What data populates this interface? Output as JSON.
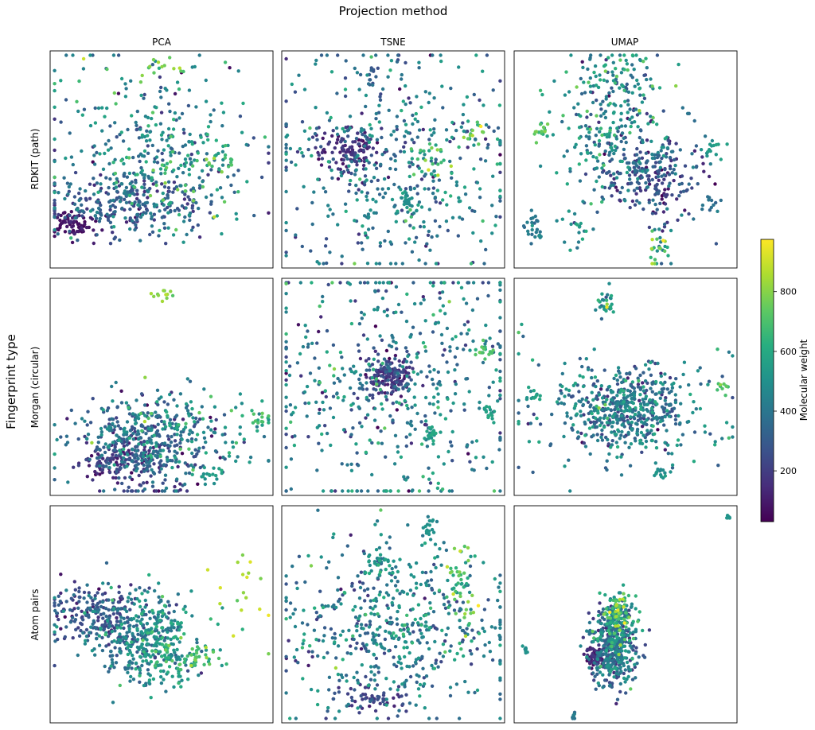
{
  "figure": {
    "title": "Projection method",
    "row_axis_label": "Fingerprint type"
  },
  "colorbar": {
    "label": "Molecular weight",
    "colormap": "viridis",
    "range": [
      30,
      975
    ],
    "ticks": [
      "200",
      "400",
      "600",
      "800"
    ]
  },
  "chart_data": {
    "type": "scatter",
    "layout": "3x3 grid of scatter panels, shared colorbar at right",
    "columns": [
      "PCA",
      "TSNE",
      "UMAP"
    ],
    "rows": [
      "RDKIT (path)",
      "Morgan (circular)",
      "Atom pairs"
    ],
    "axes_ticks_shown": false,
    "grid": false,
    "color_encoding": "Molecular weight",
    "points_per_panel_approx": 800,
    "panels": [
      {
        "row": "RDKIT (path)",
        "column": "PCA",
        "xlim": [
          0,
          1
        ],
        "ylim": [
          0,
          1
        ],
        "clusters": [
          {
            "center": [
              0.36,
              0.3
            ],
            "spread": [
              0.2,
              0.08
            ],
            "n": 300,
            "mw_mean": 300,
            "mw_sd": 90
          },
          {
            "center": [
              0.1,
              0.2
            ],
            "spread": [
              0.05,
              0.03
            ],
            "n": 70,
            "mw_mean": 80,
            "mw_sd": 30
          },
          {
            "center": [
              0.45,
              0.6
            ],
            "spread": [
              0.25,
              0.22
            ],
            "n": 240,
            "mw_mean": 420,
            "mw_sd": 140
          },
          {
            "center": [
              0.55,
              0.45
            ],
            "spread": [
              0.2,
              0.12
            ],
            "n": 120,
            "mw_mean": 560,
            "mw_sd": 140
          },
          {
            "center": [
              0.52,
              0.92
            ],
            "spread": [
              0.05,
              0.03
            ],
            "n": 12,
            "mw_mean": 800,
            "mw_sd": 40
          },
          {
            "center": [
              0.75,
              0.47
            ],
            "spread": [
              0.05,
              0.03
            ],
            "n": 10,
            "mw_mean": 760,
            "mw_sd": 60
          }
        ]
      },
      {
        "row": "RDKIT (path)",
        "column": "TSNE",
        "xlim": [
          0,
          1
        ],
        "ylim": [
          0,
          1
        ],
        "clusters": [
          {
            "center": [
              0.31,
              0.55
            ],
            "spread": [
              0.07,
              0.06
            ],
            "n": 120,
            "mw_mean": 160,
            "mw_sd": 50
          },
          {
            "center": [
              0.5,
              0.5
            ],
            "spread": [
              0.28,
              0.25
            ],
            "n": 480,
            "mw_mean": 400,
            "mw_sd": 130
          },
          {
            "center": [
              0.57,
              0.3
            ],
            "spread": [
              0.03,
              0.03
            ],
            "n": 25,
            "mw_mean": 480,
            "mw_sd": 40
          },
          {
            "center": [
              0.85,
              0.62
            ],
            "spread": [
              0.05,
              0.04
            ],
            "n": 20,
            "mw_mean": 650,
            "mw_sd": 120
          },
          {
            "center": [
              0.4,
              0.87
            ],
            "spread": [
              0.02,
              0.04
            ],
            "n": 12,
            "mw_mean": 300,
            "mw_sd": 40
          },
          {
            "center": [
              0.7,
              0.5
            ],
            "spread": [
              0.04,
              0.04
            ],
            "n": 20,
            "mw_mean": 700,
            "mw_sd": 140
          }
        ]
      },
      {
        "row": "RDKIT (path)",
        "column": "UMAP",
        "xlim": [
          0,
          1
        ],
        "ylim": [
          0,
          1
        ],
        "clusters": [
          {
            "center": [
              0.62,
              0.42
            ],
            "spread": [
              0.12,
              0.1
            ],
            "n": 240,
            "mw_mean": 260,
            "mw_sd": 110
          },
          {
            "center": [
              0.45,
              0.6
            ],
            "spread": [
              0.15,
              0.15
            ],
            "n": 200,
            "mw_mean": 450,
            "mw_sd": 140
          },
          {
            "center": [
              0.46,
              0.85
            ],
            "spread": [
              0.1,
              0.07
            ],
            "n": 100,
            "mw_mean": 480,
            "mw_sd": 160
          },
          {
            "center": [
              0.08,
              0.18
            ],
            "spread": [
              0.02,
              0.04
            ],
            "n": 25,
            "mw_mean": 420,
            "mw_sd": 40
          },
          {
            "center": [
              0.12,
              0.63
            ],
            "spread": [
              0.02,
              0.02
            ],
            "n": 15,
            "mw_mean": 700,
            "mw_sd": 50
          },
          {
            "center": [
              0.65,
              0.1
            ],
            "spread": [
              0.03,
              0.06
            ],
            "n": 30,
            "mw_mean": 600,
            "mw_sd": 180
          },
          {
            "center": [
              0.9,
              0.55
            ],
            "spread": [
              0.03,
              0.02
            ],
            "n": 15,
            "mw_mean": 520,
            "mw_sd": 40
          },
          {
            "center": [
              0.88,
              0.3
            ],
            "spread": [
              0.02,
              0.02
            ],
            "n": 12,
            "mw_mean": 380,
            "mw_sd": 30
          },
          {
            "center": [
              0.27,
              0.2
            ],
            "spread": [
              0.05,
              0.04
            ],
            "n": 20,
            "mw_mean": 480,
            "mw_sd": 80
          }
        ]
      },
      {
        "row": "Morgan (circular)",
        "column": "PCA",
        "xlim": [
          0,
          1
        ],
        "ylim": [
          0,
          1
        ],
        "clusters": [
          {
            "center": [
              0.42,
              0.22
            ],
            "spread": [
              0.14,
              0.1
            ],
            "n": 380,
            "mw_mean": 300,
            "mw_sd": 110
          },
          {
            "center": [
              0.3,
              0.15
            ],
            "spread": [
              0.08,
              0.04
            ],
            "n": 80,
            "mw_mean": 150,
            "mw_sd": 50
          },
          {
            "center": [
              0.55,
              0.3
            ],
            "spread": [
              0.2,
              0.1
            ],
            "n": 200,
            "mw_mean": 450,
            "mw_sd": 140
          },
          {
            "center": [
              0.5,
              0.92
            ],
            "spread": [
              0.03,
              0.02
            ],
            "n": 12,
            "mw_mean": 800,
            "mw_sd": 40
          },
          {
            "center": [
              0.95,
              0.35
            ],
            "spread": [
              0.02,
              0.02
            ],
            "n": 12,
            "mw_mean": 680,
            "mw_sd": 50
          },
          {
            "center": [
              0.72,
              0.1
            ],
            "spread": [
              0.03,
              0.02
            ],
            "n": 15,
            "mw_mean": 520,
            "mw_sd": 60
          }
        ]
      },
      {
        "row": "Morgan (circular)",
        "column": "TSNE",
        "xlim": [
          0,
          1
        ],
        "ylim": [
          0,
          1
        ],
        "clusters": [
          {
            "center": [
              0.48,
              0.55
            ],
            "spread": [
              0.05,
              0.05
            ],
            "n": 150,
            "mw_mean": 200,
            "mw_sd": 70
          },
          {
            "center": [
              0.5,
              0.52
            ],
            "spread": [
              0.3,
              0.3
            ],
            "n": 520,
            "mw_mean": 420,
            "mw_sd": 140
          },
          {
            "center": [
              0.67,
              0.28
            ],
            "spread": [
              0.015,
              0.015
            ],
            "n": 20,
            "mw_mean": 560,
            "mw_sd": 30
          },
          {
            "center": [
              0.9,
              0.67
            ],
            "spread": [
              0.02,
              0.015
            ],
            "n": 15,
            "mw_mean": 700,
            "mw_sd": 40
          },
          {
            "center": [
              0.94,
              0.38
            ],
            "spread": [
              0.015,
              0.02
            ],
            "n": 15,
            "mw_mean": 560,
            "mw_sd": 30
          }
        ]
      },
      {
        "row": "Morgan (circular)",
        "column": "UMAP",
        "xlim": [
          0,
          1
        ],
        "ylim": [
          0,
          1
        ],
        "clusters": [
          {
            "center": [
              0.5,
              0.4
            ],
            "spread": [
              0.12,
              0.09
            ],
            "n": 420,
            "mw_mean": 380,
            "mw_sd": 130
          },
          {
            "center": [
              0.5,
              0.4
            ],
            "spread": [
              0.28,
              0.15
            ],
            "n": 180,
            "mw_mean": 420,
            "mw_sd": 140
          },
          {
            "center": [
              0.41,
              0.88
            ],
            "spread": [
              0.02,
              0.03
            ],
            "n": 30,
            "mw_mean": 500,
            "mw_sd": 120
          },
          {
            "center": [
              0.08,
              0.45
            ],
            "spread": [
              0.02,
              0.015
            ],
            "n": 12,
            "mw_mean": 560,
            "mw_sd": 40
          },
          {
            "center": [
              0.94,
              0.5
            ],
            "spread": [
              0.015,
              0.015
            ],
            "n": 10,
            "mw_mean": 700,
            "mw_sd": 40
          },
          {
            "center": [
              0.66,
              0.1
            ],
            "spread": [
              0.02,
              0.02
            ],
            "n": 15,
            "mw_mean": 500,
            "mw_sd": 30
          }
        ]
      },
      {
        "row": "Atom pairs",
        "column": "PCA",
        "xlim": [
          0,
          1
        ],
        "ylim": [
          0,
          1
        ],
        "clusters": [
          {
            "center": [
              0.2,
              0.5
            ],
            "spread": [
              0.1,
              0.07
            ],
            "n": 200,
            "mw_mean": 250,
            "mw_sd": 80
          },
          {
            "center": [
              0.4,
              0.42
            ],
            "spread": [
              0.12,
              0.1
            ],
            "n": 320,
            "mw_mean": 430,
            "mw_sd": 110
          },
          {
            "center": [
              0.5,
              0.3
            ],
            "spread": [
              0.08,
              0.08
            ],
            "n": 120,
            "mw_mean": 560,
            "mw_sd": 100
          },
          {
            "center": [
              0.68,
              0.3
            ],
            "spread": [
              0.06,
              0.03
            ],
            "n": 40,
            "mw_mean": 680,
            "mw_sd": 80
          },
          {
            "center": [
              0.85,
              0.6
            ],
            "spread": [
              0.08,
              0.12
            ],
            "n": 20,
            "mw_mean": 840,
            "mw_sd": 80
          }
        ]
      },
      {
        "row": "Atom pairs",
        "column": "TSNE",
        "xlim": [
          0,
          1
        ],
        "ylim": [
          0,
          1
        ],
        "clusters": [
          {
            "center": [
              0.5,
              0.45
            ],
            "spread": [
              0.25,
              0.2
            ],
            "n": 560,
            "mw_mean": 420,
            "mw_sd": 130
          },
          {
            "center": [
              0.4,
              0.12
            ],
            "spread": [
              0.08,
              0.03
            ],
            "n": 60,
            "mw_mean": 200,
            "mw_sd": 60
          },
          {
            "center": [
              0.8,
              0.6
            ],
            "spread": [
              0.05,
              0.1
            ],
            "n": 40,
            "mw_mean": 720,
            "mw_sd": 120
          },
          {
            "center": [
              0.66,
              0.9
            ],
            "spread": [
              0.015,
              0.03
            ],
            "n": 20,
            "mw_mean": 500,
            "mw_sd": 30
          },
          {
            "center": [
              0.45,
              0.73
            ],
            "spread": [
              0.04,
              0.03
            ],
            "n": 30,
            "mw_mean": 520,
            "mw_sd": 60
          }
        ]
      },
      {
        "row": "Atom pairs",
        "column": "UMAP",
        "xlim": [
          0,
          1
        ],
        "ylim": [
          0,
          1
        ],
        "clusters": [
          {
            "center": [
              0.45,
              0.35
            ],
            "spread": [
              0.05,
              0.09
            ],
            "n": 420,
            "mw_mean": 360,
            "mw_sd": 120
          },
          {
            "center": [
              0.36,
              0.3
            ],
            "spread": [
              0.02,
              0.02
            ],
            "n": 60,
            "mw_mean": 120,
            "mw_sd": 40
          },
          {
            "center": [
              0.47,
              0.5
            ],
            "spread": [
              0.04,
              0.06
            ],
            "n": 120,
            "mw_mean": 600,
            "mw_sd": 160
          },
          {
            "center": [
              0.96,
              0.95
            ],
            "spread": [
              0.005,
              0.005
            ],
            "n": 8,
            "mw_mean": 500,
            "mw_sd": 20
          },
          {
            "center": [
              0.05,
              0.33
            ],
            "spread": [
              0.005,
              0.01
            ],
            "n": 8,
            "mw_mean": 500,
            "mw_sd": 20
          },
          {
            "center": [
              0.27,
              0.04
            ],
            "spread": [
              0.005,
              0.01
            ],
            "n": 8,
            "mw_mean": 400,
            "mw_sd": 20
          }
        ]
      }
    ]
  }
}
